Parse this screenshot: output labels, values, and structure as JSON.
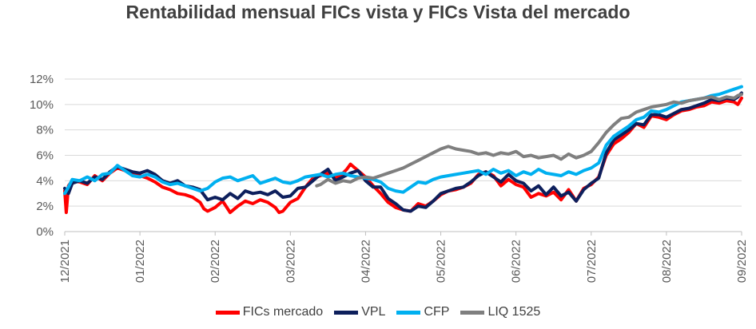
{
  "chart_data": {
    "type": "line",
    "title": "Rentabilidad mensual FICs vista y FICs Vista del mercado",
    "xlabel": "",
    "ylabel": "",
    "ylim": [
      0,
      12
    ],
    "y_ticks": [
      "0%",
      "2%",
      "4%",
      "6%",
      "8%",
      "10%",
      "12%"
    ],
    "y_tick_values": [
      0,
      2,
      4,
      6,
      8,
      10,
      12
    ],
    "x_tick_labels": [
      "12/2021",
      "01/2022",
      "02/2022",
      "03/2022",
      "04/2022",
      "05/2022",
      "06/2022",
      "07/2022",
      "08/2022",
      "09/2022"
    ],
    "xlim": [
      0,
      9
    ],
    "grid": true,
    "legend_position": "bottom",
    "series": [
      {
        "name": "FICs mercado",
        "color": "#ff0000",
        "x": [
          0,
          0.02,
          0.05,
          0.1,
          0.2,
          0.3,
          0.4,
          0.5,
          0.6,
          0.7,
          0.8,
          0.9,
          1.0,
          1.1,
          1.2,
          1.3,
          1.4,
          1.5,
          1.6,
          1.7,
          1.8,
          1.85,
          1.9,
          2.0,
          2.1,
          2.2,
          2.3,
          2.4,
          2.5,
          2.6,
          2.7,
          2.8,
          2.85,
          2.9,
          3.0,
          3.1,
          3.2,
          3.3,
          3.4,
          3.5,
          3.6,
          3.7,
          3.75,
          3.8,
          3.9,
          4.0,
          4.1,
          4.2,
          4.3,
          4.4,
          4.5,
          4.6,
          4.7,
          4.8,
          4.9,
          5.0,
          5.1,
          5.2,
          5.3,
          5.4,
          5.5,
          5.6,
          5.7,
          5.8,
          5.9,
          6.0,
          6.1,
          6.2,
          6.3,
          6.4,
          6.5,
          6.6,
          6.7,
          6.8,
          6.9,
          7.0,
          7.1,
          7.2,
          7.3,
          7.4,
          7.5,
          7.6,
          7.7,
          7.8,
          7.9,
          8.0,
          8.1,
          8.2,
          8.3,
          8.4,
          8.5,
          8.6,
          8.7,
          8.8,
          8.9,
          8.95,
          9.0
        ],
        "y": [
          3.2,
          1.5,
          3.6,
          4.0,
          3.9,
          3.7,
          4.4,
          4.0,
          4.6,
          5.0,
          4.8,
          4.5,
          4.4,
          4.2,
          3.9,
          3.5,
          3.3,
          3.0,
          2.9,
          2.7,
          2.3,
          1.8,
          1.6,
          1.9,
          2.4,
          1.5,
          2.0,
          2.4,
          2.2,
          2.5,
          2.3,
          1.9,
          1.5,
          1.6,
          2.3,
          2.6,
          3.5,
          4.2,
          4.4,
          4.6,
          4.2,
          4.6,
          4.9,
          5.3,
          4.8,
          4.3,
          3.6,
          3.0,
          2.3,
          1.9,
          1.7,
          1.6,
          2.2,
          2.0,
          2.4,
          2.9,
          3.2,
          3.3,
          3.5,
          3.8,
          4.5,
          4.7,
          4.4,
          3.6,
          4.1,
          3.7,
          3.5,
          2.7,
          3.0,
          2.8,
          3.1,
          2.5,
          3.3,
          2.4,
          3.4,
          3.7,
          4.3,
          6.0,
          6.9,
          7.3,
          7.8,
          8.5,
          8.2,
          9.1,
          9.0,
          8.8,
          9.2,
          9.5,
          9.6,
          9.8,
          9.9,
          10.2,
          10.1,
          10.3,
          10.2,
          10.0,
          10.5
        ]
      },
      {
        "name": "VPL",
        "color": "#0d1f5c",
        "x": [
          0,
          0.05,
          0.1,
          0.2,
          0.3,
          0.4,
          0.5,
          0.6,
          0.7,
          0.8,
          0.9,
          1.0,
          1.1,
          1.2,
          1.3,
          1.4,
          1.5,
          1.6,
          1.7,
          1.8,
          1.9,
          2.0,
          2.1,
          2.2,
          2.3,
          2.4,
          2.5,
          2.6,
          2.7,
          2.8,
          2.9,
          3.0,
          3.1,
          3.2,
          3.3,
          3.4,
          3.5,
          3.6,
          3.7,
          3.8,
          3.9,
          4.0,
          4.1,
          4.2,
          4.3,
          4.4,
          4.5,
          4.6,
          4.7,
          4.8,
          4.9,
          5.0,
          5.1,
          5.2,
          5.3,
          5.4,
          5.5,
          5.6,
          5.7,
          5.8,
          5.9,
          6.0,
          6.1,
          6.2,
          6.3,
          6.4,
          6.5,
          6.6,
          6.7,
          6.8,
          6.9,
          7.0,
          7.1,
          7.2,
          7.3,
          7.4,
          7.5,
          7.6,
          7.7,
          7.8,
          7.9,
          8.0,
          8.1,
          8.2,
          8.3,
          8.4,
          8.5,
          8.6,
          8.7,
          8.8,
          8.9,
          8.95,
          9.0
        ],
        "y": [
          3.4,
          3.0,
          3.8,
          4.0,
          3.8,
          4.3,
          4.1,
          4.7,
          5.1,
          4.9,
          4.7,
          4.6,
          4.8,
          4.5,
          4.0,
          3.8,
          4.0,
          3.6,
          3.5,
          3.3,
          2.5,
          2.7,
          2.5,
          3.0,
          2.6,
          3.2,
          3.0,
          3.1,
          2.9,
          3.2,
          2.7,
          2.8,
          3.4,
          3.5,
          4.0,
          4.5,
          4.9,
          4.0,
          4.3,
          4.6,
          4.8,
          4.0,
          3.5,
          3.5,
          2.6,
          2.2,
          1.7,
          1.6,
          2.0,
          1.9,
          2.4,
          3.0,
          3.2,
          3.4,
          3.5,
          3.9,
          4.4,
          4.7,
          4.3,
          3.9,
          4.5,
          4.0,
          3.8,
          3.2,
          3.6,
          2.9,
          3.5,
          2.8,
          3.1,
          2.4,
          3.3,
          3.8,
          4.2,
          6.2,
          7.2,
          7.6,
          8.0,
          8.5,
          8.4,
          9.2,
          9.2,
          9.0,
          9.3,
          9.6,
          9.7,
          9.9,
          10.1,
          10.4,
          10.3,
          10.5,
          10.4,
          10.6,
          10.9
        ]
      },
      {
        "name": "CFP",
        "color": "#00b0f0",
        "x": [
          0,
          0.05,
          0.1,
          0.2,
          0.3,
          0.4,
          0.5,
          0.6,
          0.7,
          0.8,
          0.9,
          1.0,
          1.1,
          1.2,
          1.3,
          1.4,
          1.5,
          1.6,
          1.7,
          1.8,
          1.9,
          2.0,
          2.1,
          2.2,
          2.3,
          2.4,
          2.5,
          2.6,
          2.7,
          2.8,
          2.9,
          3.0,
          3.1,
          3.2,
          3.3,
          3.4,
          3.5,
          3.6,
          3.7,
          3.8,
          3.9,
          4.0,
          4.1,
          4.2,
          4.3,
          4.4,
          4.5,
          4.6,
          4.7,
          4.8,
          4.9,
          5.0,
          5.1,
          5.2,
          5.3,
          5.4,
          5.5,
          5.6,
          5.7,
          5.8,
          5.9,
          6.0,
          6.1,
          6.2,
          6.3,
          6.4,
          6.5,
          6.6,
          6.7,
          6.8,
          6.9,
          7.0,
          7.1,
          7.2,
          7.3,
          7.4,
          7.5,
          7.6,
          7.7,
          7.8,
          7.9,
          8.0,
          8.1,
          8.2,
          8.3,
          8.4,
          8.5,
          8.6,
          8.7,
          8.8,
          8.9,
          8.95,
          9.0
        ],
        "y": [
          3.0,
          3.5,
          4.1,
          4.0,
          4.3,
          4.0,
          4.5,
          4.6,
          5.2,
          4.8,
          4.4,
          4.3,
          4.5,
          4.3,
          3.9,
          3.7,
          3.8,
          3.6,
          3.4,
          3.2,
          3.4,
          3.9,
          4.2,
          4.3,
          4.0,
          4.2,
          4.4,
          3.8,
          4.0,
          4.2,
          3.9,
          3.8,
          4.0,
          4.3,
          4.4,
          4.5,
          4.3,
          4.5,
          4.6,
          4.4,
          4.3,
          4.2,
          4.1,
          3.9,
          3.4,
          3.2,
          3.1,
          3.5,
          3.9,
          3.8,
          4.1,
          4.3,
          4.4,
          4.5,
          4.6,
          4.7,
          4.8,
          4.5,
          4.9,
          4.6,
          4.8,
          4.4,
          4.7,
          4.5,
          4.9,
          4.6,
          4.5,
          4.4,
          4.7,
          4.5,
          4.8,
          5.0,
          5.4,
          6.8,
          7.5,
          7.9,
          8.3,
          8.8,
          9.0,
          9.5,
          9.4,
          9.6,
          9.9,
          10.2,
          10.3,
          10.4,
          10.5,
          10.7,
          10.8,
          11.0,
          11.2,
          11.3,
          11.4
        ]
      },
      {
        "name": "LIQ 1525",
        "color": "#7f7f7f",
        "x": [
          3.35,
          3.4,
          3.5,
          3.6,
          3.7,
          3.8,
          3.9,
          4.0,
          4.1,
          4.2,
          4.3,
          4.4,
          4.5,
          4.6,
          4.7,
          4.8,
          4.9,
          5.0,
          5.1,
          5.2,
          5.3,
          5.4,
          5.5,
          5.6,
          5.7,
          5.8,
          5.9,
          6.0,
          6.1,
          6.2,
          6.3,
          6.4,
          6.5,
          6.6,
          6.7,
          6.8,
          6.9,
          7.0,
          7.1,
          7.2,
          7.3,
          7.4,
          7.5,
          7.6,
          7.7,
          7.8,
          7.9,
          8.0,
          8.1,
          8.2,
          8.3,
          8.4,
          8.5,
          8.6,
          8.7,
          8.8,
          8.9,
          8.95,
          9.0
        ],
        "y": [
          3.6,
          3.7,
          4.1,
          3.8,
          4.0,
          3.9,
          4.2,
          4.3,
          4.2,
          4.4,
          4.6,
          4.8,
          5.0,
          5.3,
          5.6,
          5.9,
          6.2,
          6.5,
          6.7,
          6.5,
          6.4,
          6.3,
          6.1,
          6.2,
          6.0,
          6.2,
          6.1,
          6.3,
          5.9,
          6.0,
          5.8,
          5.9,
          6.0,
          5.7,
          6.1,
          5.8,
          6.0,
          6.3,
          7.0,
          7.8,
          8.4,
          8.9,
          9.0,
          9.4,
          9.6,
          9.8,
          9.9,
          10.0,
          10.2,
          10.1,
          10.3,
          10.4,
          10.5,
          10.6,
          10.4,
          10.6,
          10.5,
          10.7,
          10.8
        ]
      }
    ]
  }
}
